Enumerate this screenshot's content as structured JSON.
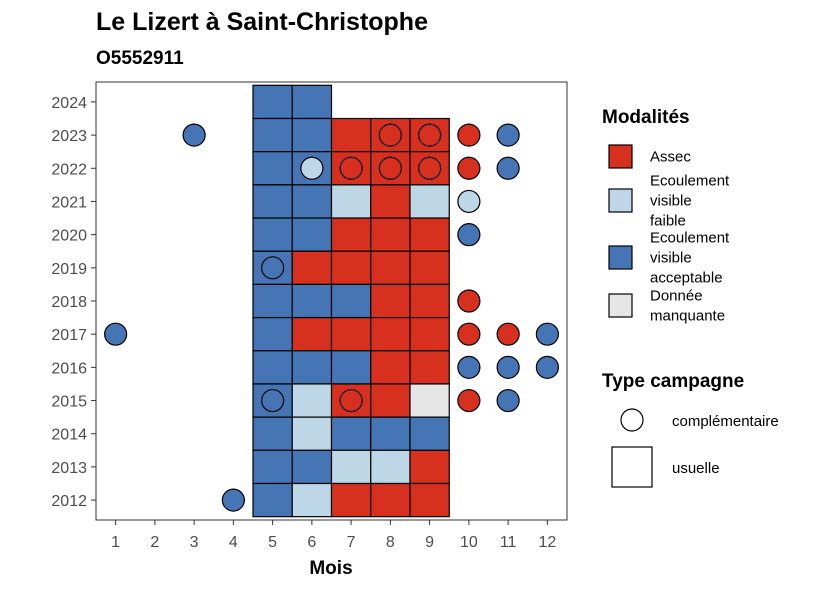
{
  "chart_data": {
    "type": "heatmap",
    "title": "Le Lizert à Saint-Christophe",
    "subtitle": "O5552911",
    "xlabel": "Mois",
    "ylabel": "",
    "x_ticks": [
      1,
      2,
      3,
      4,
      5,
      6,
      7,
      8,
      9,
      10,
      11,
      12
    ],
    "y_ticks": [
      2012,
      2013,
      2014,
      2015,
      2016,
      2017,
      2018,
      2019,
      2020,
      2021,
      2022,
      2023,
      2024
    ],
    "xlim": [
      0.5,
      12.5
    ],
    "ylim": [
      2011.4,
      2024.6
    ],
    "colors": {
      "Assec": "#d7301f",
      "Ecoulement visible faible": "#bdd7e7",
      "Ecoulement visible acceptable": "#4575b4",
      "Donnée manquante": "#e5e5e5"
    },
    "legend_modalites": {
      "title": "Modalités",
      "items": [
        {
          "key": "Assec",
          "lines": [
            "Assec"
          ]
        },
        {
          "key": "Ecoulement visible faible",
          "lines": [
            "Ecoulement",
            "visible",
            "faible"
          ]
        },
        {
          "key": "Ecoulement visible acceptable",
          "lines": [
            "Ecoulement",
            "visible",
            "acceptable"
          ]
        },
        {
          "key": "Donnée manquante",
          "lines": [
            "Donnée",
            "manquante"
          ]
        }
      ]
    },
    "legend_campagne": {
      "title": "Type campagne",
      "items": [
        {
          "shape": "circle",
          "label": "complémentaire"
        },
        {
          "shape": "square",
          "label": "usuelle"
        }
      ]
    },
    "usuelle": [
      {
        "year": 2024,
        "month": 5,
        "value": "Ecoulement visible acceptable"
      },
      {
        "year": 2024,
        "month": 6,
        "value": "Ecoulement visible acceptable"
      },
      {
        "year": 2023,
        "month": 5,
        "value": "Ecoulement visible acceptable"
      },
      {
        "year": 2023,
        "month": 6,
        "value": "Ecoulement visible acceptable"
      },
      {
        "year": 2023,
        "month": 7,
        "value": "Assec"
      },
      {
        "year": 2023,
        "month": 8,
        "value": "Assec"
      },
      {
        "year": 2023,
        "month": 9,
        "value": "Assec"
      },
      {
        "year": 2022,
        "month": 5,
        "value": "Ecoulement visible acceptable"
      },
      {
        "year": 2022,
        "month": 6,
        "value": "Ecoulement visible acceptable"
      },
      {
        "year": 2022,
        "month": 7,
        "value": "Assec"
      },
      {
        "year": 2022,
        "month": 8,
        "value": "Assec"
      },
      {
        "year": 2022,
        "month": 9,
        "value": "Assec"
      },
      {
        "year": 2021,
        "month": 5,
        "value": "Ecoulement visible acceptable"
      },
      {
        "year": 2021,
        "month": 6,
        "value": "Ecoulement visible acceptable"
      },
      {
        "year": 2021,
        "month": 7,
        "value": "Ecoulement visible faible"
      },
      {
        "year": 2021,
        "month": 8,
        "value": "Assec"
      },
      {
        "year": 2021,
        "month": 9,
        "value": "Ecoulement visible faible"
      },
      {
        "year": 2020,
        "month": 5,
        "value": "Ecoulement visible acceptable"
      },
      {
        "year": 2020,
        "month": 6,
        "value": "Ecoulement visible acceptable"
      },
      {
        "year": 2020,
        "month": 7,
        "value": "Assec"
      },
      {
        "year": 2020,
        "month": 8,
        "value": "Assec"
      },
      {
        "year": 2020,
        "month": 9,
        "value": "Assec"
      },
      {
        "year": 2019,
        "month": 5,
        "value": "Ecoulement visible acceptable"
      },
      {
        "year": 2019,
        "month": 6,
        "value": "Assec"
      },
      {
        "year": 2019,
        "month": 7,
        "value": "Assec"
      },
      {
        "year": 2019,
        "month": 8,
        "value": "Assec"
      },
      {
        "year": 2019,
        "month": 9,
        "value": "Assec"
      },
      {
        "year": 2018,
        "month": 5,
        "value": "Ecoulement visible acceptable"
      },
      {
        "year": 2018,
        "month": 6,
        "value": "Ecoulement visible acceptable"
      },
      {
        "year": 2018,
        "month": 7,
        "value": "Ecoulement visible acceptable"
      },
      {
        "year": 2018,
        "month": 8,
        "value": "Assec"
      },
      {
        "year": 2018,
        "month": 9,
        "value": "Assec"
      },
      {
        "year": 2017,
        "month": 5,
        "value": "Ecoulement visible acceptable"
      },
      {
        "year": 2017,
        "month": 6,
        "value": "Assec"
      },
      {
        "year": 2017,
        "month": 7,
        "value": "Assec"
      },
      {
        "year": 2017,
        "month": 8,
        "value": "Assec"
      },
      {
        "year": 2017,
        "month": 9,
        "value": "Assec"
      },
      {
        "year": 2016,
        "month": 5,
        "value": "Ecoulement visible acceptable"
      },
      {
        "year": 2016,
        "month": 6,
        "value": "Ecoulement visible acceptable"
      },
      {
        "year": 2016,
        "month": 7,
        "value": "Ecoulement visible acceptable"
      },
      {
        "year": 2016,
        "month": 8,
        "value": "Assec"
      },
      {
        "year": 2016,
        "month": 9,
        "value": "Assec"
      },
      {
        "year": 2015,
        "month": 5,
        "value": "Ecoulement visible acceptable"
      },
      {
        "year": 2015,
        "month": 6,
        "value": "Ecoulement visible faible"
      },
      {
        "year": 2015,
        "month": 7,
        "value": "Assec"
      },
      {
        "year": 2015,
        "month": 8,
        "value": "Assec"
      },
      {
        "year": 2015,
        "month": 9,
        "value": "Donnée manquante"
      },
      {
        "year": 2014,
        "month": 5,
        "value": "Ecoulement visible acceptable"
      },
      {
        "year": 2014,
        "month": 6,
        "value": "Ecoulement visible faible"
      },
      {
        "year": 2014,
        "month": 7,
        "value": "Ecoulement visible acceptable"
      },
      {
        "year": 2014,
        "month": 8,
        "value": "Ecoulement visible acceptable"
      },
      {
        "year": 2014,
        "month": 9,
        "value": "Ecoulement visible acceptable"
      },
      {
        "year": 2013,
        "month": 5,
        "value": "Ecoulement visible acceptable"
      },
      {
        "year": 2013,
        "month": 6,
        "value": "Ecoulement visible acceptable"
      },
      {
        "year": 2013,
        "month": 7,
        "value": "Ecoulement visible faible"
      },
      {
        "year": 2013,
        "month": 8,
        "value": "Ecoulement visible faible"
      },
      {
        "year": 2013,
        "month": 9,
        "value": "Assec"
      },
      {
        "year": 2012,
        "month": 5,
        "value": "Ecoulement visible acceptable"
      },
      {
        "year": 2012,
        "month": 6,
        "value": "Ecoulement visible faible"
      },
      {
        "year": 2012,
        "month": 7,
        "value": "Assec"
      },
      {
        "year": 2012,
        "month": 8,
        "value": "Assec"
      },
      {
        "year": 2012,
        "month": 9,
        "value": "Assec"
      }
    ],
    "complementaire": [
      {
        "year": 2023,
        "month": 3,
        "value": "Ecoulement visible acceptable"
      },
      {
        "year": 2023,
        "month": 8,
        "value": "Assec"
      },
      {
        "year": 2023,
        "month": 9,
        "value": "Assec"
      },
      {
        "year": 2023,
        "month": 10,
        "value": "Assec"
      },
      {
        "year": 2023,
        "month": 11,
        "value": "Ecoulement visible acceptable"
      },
      {
        "year": 2022,
        "month": 6,
        "value": "Ecoulement visible faible"
      },
      {
        "year": 2022,
        "month": 7,
        "value": "Assec"
      },
      {
        "year": 2022,
        "month": 8,
        "value": "Assec"
      },
      {
        "year": 2022,
        "month": 9,
        "value": "Assec"
      },
      {
        "year": 2022,
        "month": 10,
        "value": "Assec"
      },
      {
        "year": 2022,
        "month": 11,
        "value": "Ecoulement visible acceptable"
      },
      {
        "year": 2021,
        "month": 10,
        "value": "Ecoulement visible faible"
      },
      {
        "year": 2020,
        "month": 10,
        "value": "Ecoulement visible acceptable"
      },
      {
        "year": 2019,
        "month": 5,
        "value": "Ecoulement visible acceptable"
      },
      {
        "year": 2018,
        "month": 10,
        "value": "Assec"
      },
      {
        "year": 2017,
        "month": 1,
        "value": "Ecoulement visible acceptable"
      },
      {
        "year": 2017,
        "month": 10,
        "value": "Assec"
      },
      {
        "year": 2017,
        "month": 11,
        "value": "Assec"
      },
      {
        "year": 2017,
        "month": 12,
        "value": "Ecoulement visible acceptable"
      },
      {
        "year": 2016,
        "month": 10,
        "value": "Ecoulement visible acceptable"
      },
      {
        "year": 2016,
        "month": 11,
        "value": "Ecoulement visible acceptable"
      },
      {
        "year": 2016,
        "month": 12,
        "value": "Ecoulement visible acceptable"
      },
      {
        "year": 2015,
        "month": 5,
        "value": "Ecoulement visible acceptable"
      },
      {
        "year": 2015,
        "month": 7,
        "value": "Assec"
      },
      {
        "year": 2015,
        "month": 10,
        "value": "Assec"
      },
      {
        "year": 2015,
        "month": 11,
        "value": "Ecoulement visible acceptable"
      },
      {
        "year": 2012,
        "month": 4,
        "value": "Ecoulement visible acceptable"
      }
    ]
  }
}
